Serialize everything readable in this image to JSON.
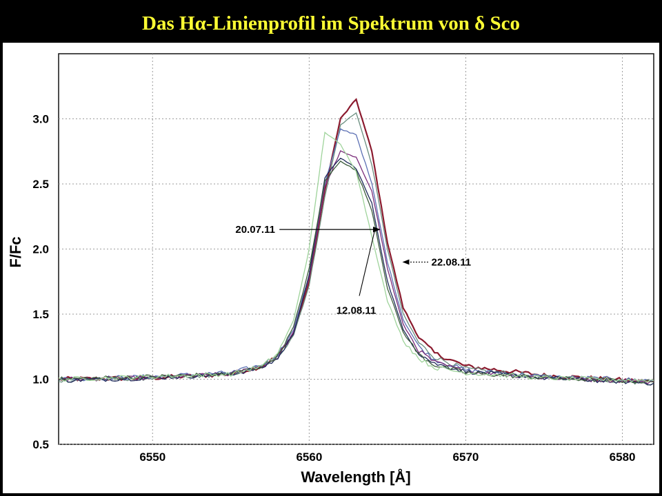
{
  "page": {
    "title": "Das Hα-Linienprofil im Spektrum von δ Sco"
  },
  "chart_data": {
    "type": "line",
    "title": "Das Hα-Linienprofil im Spektrum von δ Sco",
    "xlabel": "Wavelength [Å]",
    "ylabel": "F/Fc",
    "xlim": [
      6544,
      6582
    ],
    "ylim": [
      0.5,
      3.5
    ],
    "x_ticks": [
      6550,
      6560,
      6570,
      6580
    ],
    "y_ticks": [
      "0.5",
      "1.0",
      "1.5",
      "2.0",
      "2.5",
      "3.0"
    ],
    "grid": true,
    "legend": "none",
    "x": [
      6544,
      6550,
      6555,
      6557,
      6558,
      6559,
      6560,
      6561,
      6562,
      6563,
      6564,
      6565,
      6566,
      6567,
      6568,
      6570,
      6575,
      6582
    ],
    "series": [
      {
        "color": "#8b1a2e",
        "values": [
          1.0,
          1.01,
          1.04,
          1.1,
          1.18,
          1.35,
          1.75,
          2.45,
          3.0,
          3.15,
          2.75,
          2.05,
          1.55,
          1.32,
          1.2,
          1.1,
          1.03,
          0.98
        ]
      },
      {
        "color": "#6a8e7f",
        "values": [
          0.99,
          1.01,
          1.04,
          1.1,
          1.17,
          1.34,
          1.72,
          2.4,
          2.95,
          3.05,
          2.65,
          2.0,
          1.5,
          1.28,
          1.17,
          1.08,
          1.02,
          0.97
        ]
      },
      {
        "color": "#5b6fb3",
        "values": [
          1.0,
          1.02,
          1.05,
          1.11,
          1.19,
          1.38,
          1.8,
          2.5,
          2.92,
          2.88,
          2.5,
          1.9,
          1.46,
          1.25,
          1.15,
          1.07,
          1.02,
          0.99
        ]
      },
      {
        "color": "#7a2c7a",
        "values": [
          1.0,
          1.01,
          1.04,
          1.1,
          1.17,
          1.36,
          1.78,
          2.48,
          2.75,
          2.7,
          2.45,
          1.85,
          1.42,
          1.22,
          1.13,
          1.06,
          1.01,
          0.98
        ]
      },
      {
        "color": "#1f2a5a",
        "values": [
          0.99,
          1.01,
          1.04,
          1.09,
          1.16,
          1.35,
          1.8,
          2.55,
          2.7,
          2.62,
          2.35,
          1.75,
          1.38,
          1.2,
          1.12,
          1.06,
          1.01,
          0.97
        ]
      },
      {
        "color": "#3c5c3c",
        "values": [
          1.0,
          1.02,
          1.04,
          1.1,
          1.18,
          1.4,
          1.85,
          2.52,
          2.68,
          2.6,
          2.3,
          1.7,
          1.36,
          1.19,
          1.11,
          1.05,
          1.01,
          0.98
        ]
      },
      {
        "color": "#9ed39a",
        "values": [
          1.0,
          1.02,
          1.04,
          1.1,
          1.2,
          1.45,
          2.0,
          2.9,
          2.8,
          2.6,
          2.1,
          1.6,
          1.3,
          1.16,
          1.09,
          1.05,
          1.01,
          0.99
        ]
      }
    ],
    "annotations": [
      {
        "label": "20.07.11",
        "x": 6564.5,
        "y": 2.15
      },
      {
        "label": "22.08.11",
        "x": 6566.0,
        "y": 1.9
      },
      {
        "label": "12.08.11",
        "x": 6564.2,
        "y": 2.15
      }
    ]
  }
}
